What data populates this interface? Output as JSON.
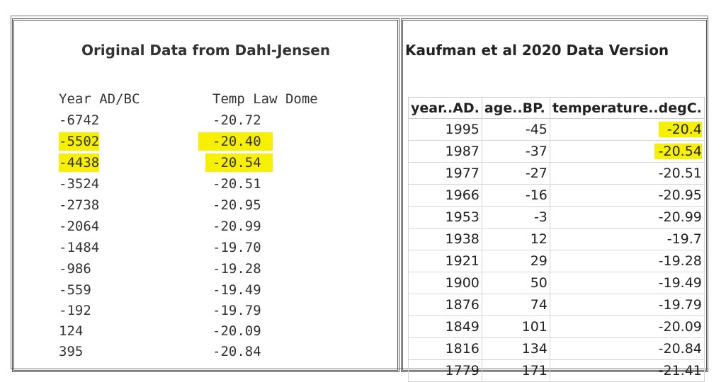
{
  "left": {
    "title": "Original Data from Dahl-Jensen",
    "col_year": "Year AD/BC",
    "col_temp": "Temp Law Dome",
    "rows": [
      {
        "year": "-6742",
        "temp": "-20.72"
      },
      {
        "year": "-5502",
        "temp": "-20.40"
      },
      {
        "year": "-4438",
        "temp": "-20.54"
      },
      {
        "year": "-3524",
        "temp": "-20.51"
      },
      {
        "year": "-2738",
        "temp": "-20.95"
      },
      {
        "year": "-2064",
        "temp": "-20.99"
      },
      {
        "year": "-1484",
        "temp": "-19.70"
      },
      {
        "year": "-986",
        "temp": "-19.28"
      },
      {
        "year": "-559",
        "temp": "-19.49"
      },
      {
        "year": "-192",
        "temp": "-19.79"
      },
      {
        "year": "124",
        "temp": "-20.09"
      },
      {
        "year": "395",
        "temp": "-20.84"
      }
    ]
  },
  "right": {
    "title": "Kaufman et al 2020 Data Version",
    "headers": [
      "year..AD.",
      "age..BP.",
      "temperature..degC."
    ],
    "rows": [
      [
        "1995",
        "-45",
        "-20.4"
      ],
      [
        "1987",
        "-37",
        "-20.54"
      ],
      [
        "1977",
        "-27",
        "-20.51"
      ],
      [
        "1966",
        "-16",
        "-20.95"
      ],
      [
        "1953",
        "-3",
        "-20.99"
      ],
      [
        "1938",
        "12",
        "-19.7"
      ],
      [
        "1921",
        "29",
        "-19.28"
      ],
      [
        "1900",
        "50",
        "-19.49"
      ],
      [
        "1876",
        "74",
        "-19.79"
      ],
      [
        "1849",
        "101",
        "-20.09"
      ],
      [
        "1816",
        "134",
        "-20.84"
      ],
      [
        "1779",
        "171",
        "-21.41"
      ]
    ]
  },
  "highlight_color": "#f7f000"
}
